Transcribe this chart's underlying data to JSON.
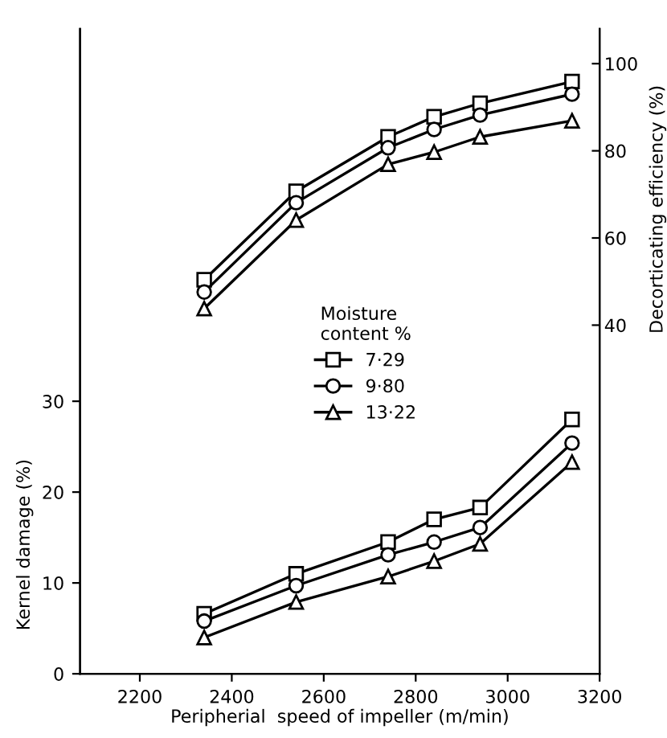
{
  "chart_data": {
    "type": "line",
    "xlabel": "Peripherial  speed of impeller (m/min)",
    "ylabel": "Kernel damage (%)",
    "y2label": "Decorticating efficiency (%)",
    "legend_title": "Moisture\ncontent %",
    "x": [
      2340,
      2540,
      2740,
      2840,
      2940,
      3140
    ],
    "xlim": [
      2070,
      3200
    ],
    "xticks": [
      2200,
      2400,
      2600,
      2800,
      3000,
      3200
    ],
    "ylim": [
      0,
      71
    ],
    "yticks": [
      0,
      10,
      20,
      30
    ],
    "y2lim": [
      -40,
      108
    ],
    "y2ticks": [
      40,
      60,
      80,
      100
    ],
    "grid": false,
    "legend": "center",
    "series": [
      {
        "name": "7·29",
        "color": "#000000",
        "marker": "square",
        "values": [
          6.6,
          11.0,
          14.5,
          17.0,
          18.3,
          28.0
        ]
      },
      {
        "name": "9·80",
        "color": "#000000",
        "marker": "circle",
        "values": [
          5.8,
          9.7,
          13.1,
          14.5,
          16.1,
          25.4
        ]
      },
      {
        "name": "13·22",
        "color": "#000000",
        "marker": "triangle",
        "values": [
          4.0,
          7.9,
          10.7,
          12.4,
          14.3,
          23.3
        ]
      },
      {
        "color": "#000000",
        "marker": "square",
        "axis": "y2",
        "values": [
          50.4,
          70.7,
          83.2,
          87.8,
          90.9,
          95.9
        ]
      },
      {
        "color": "#000000",
        "marker": "circle",
        "axis": "y2",
        "values": [
          47.6,
          68.1,
          80.7,
          84.9,
          88.2,
          93.0
        ]
      },
      {
        "color": "#000000",
        "marker": "triangle",
        "axis": "y2",
        "values": [
          43.8,
          64.1,
          76.9,
          79.7,
          83.2,
          86.9
        ]
      }
    ]
  }
}
